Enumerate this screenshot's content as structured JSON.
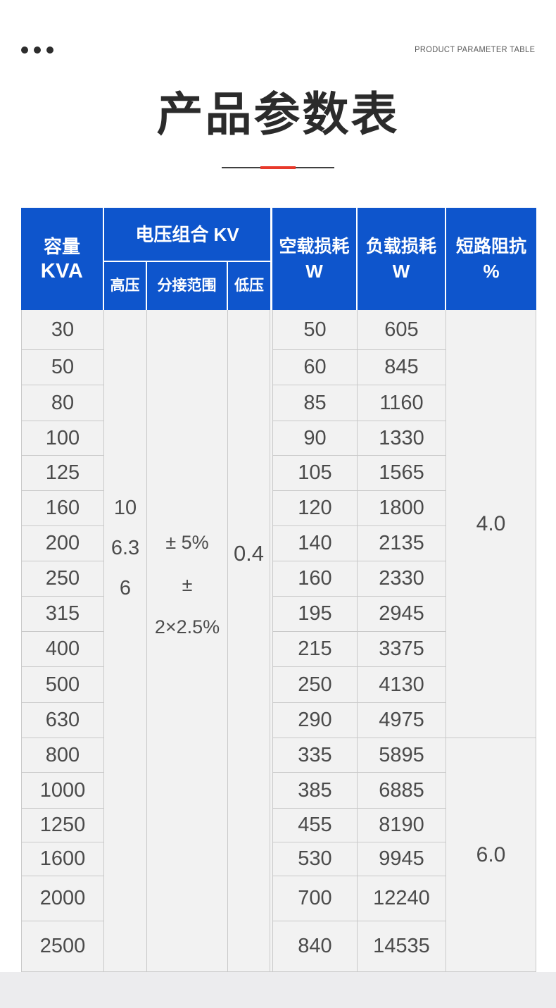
{
  "topbar": {
    "corner_label": "PRODUCT PARAMETER TABLE"
  },
  "title": "产品参数表",
  "table": {
    "headers": {
      "capacity_line1": "容量",
      "capacity_line2": "KVA",
      "voltage_group": "电压组合 KV",
      "high_voltage": "高压",
      "tap_range": "分接范围",
      "low_voltage": "低压",
      "no_load_line1": "空载损耗",
      "no_load_line2": "W",
      "load_line1": "负载损耗",
      "load_line2": "W",
      "impedance_line1": "短路阻抗",
      "impedance_line2": "%"
    },
    "merged_cells": {
      "high_voltage_values": [
        "10",
        "6.3",
        "6"
      ],
      "tap_range_values": [
        "± 5%",
        "± 2×2.5%"
      ],
      "low_voltage_value": "0.4",
      "impedance_groups": [
        {
          "value": "4.0",
          "row_span": 12
        },
        {
          "value": "6.0",
          "row_span": 6
        }
      ]
    },
    "rows": [
      {
        "capacity": "30",
        "no_load_loss": "50",
        "load_loss": "605"
      },
      {
        "capacity": "50",
        "no_load_loss": "60",
        "load_loss": "845"
      },
      {
        "capacity": "80",
        "no_load_loss": "85",
        "load_loss": "1160"
      },
      {
        "capacity": "100",
        "no_load_loss": "90",
        "load_loss": "1330"
      },
      {
        "capacity": "125",
        "no_load_loss": "105",
        "load_loss": "1565"
      },
      {
        "capacity": "160",
        "no_load_loss": "120",
        "load_loss": "1800"
      },
      {
        "capacity": "200",
        "no_load_loss": "140",
        "load_loss": "2135"
      },
      {
        "capacity": "250",
        "no_load_loss": "160",
        "load_loss": "2330"
      },
      {
        "capacity": "315",
        "no_load_loss": "195",
        "load_loss": "2945"
      },
      {
        "capacity": "400",
        "no_load_loss": "215",
        "load_loss": "3375"
      },
      {
        "capacity": "500",
        "no_load_loss": "250",
        "load_loss": "4130"
      },
      {
        "capacity": "630",
        "no_load_loss": "290",
        "load_loss": "4975"
      },
      {
        "capacity": "800",
        "no_load_loss": "335",
        "load_loss": "5895"
      },
      {
        "capacity": "1000",
        "no_load_loss": "385",
        "load_loss": "6885"
      },
      {
        "capacity": "1250",
        "no_load_loss": "455",
        "load_loss": "8190"
      },
      {
        "capacity": "1600",
        "no_load_loss": "530",
        "load_loss": "9945"
      },
      {
        "capacity": "2000",
        "no_load_loss": "700",
        "load_loss": "12240"
      },
      {
        "capacity": "2500",
        "no_load_loss": "840",
        "load_loss": "14535"
      }
    ]
  },
  "colors": {
    "header_blue": "#0e55cc",
    "accent_red": "#e8392b",
    "divider_dark": "#3f3f3f"
  }
}
